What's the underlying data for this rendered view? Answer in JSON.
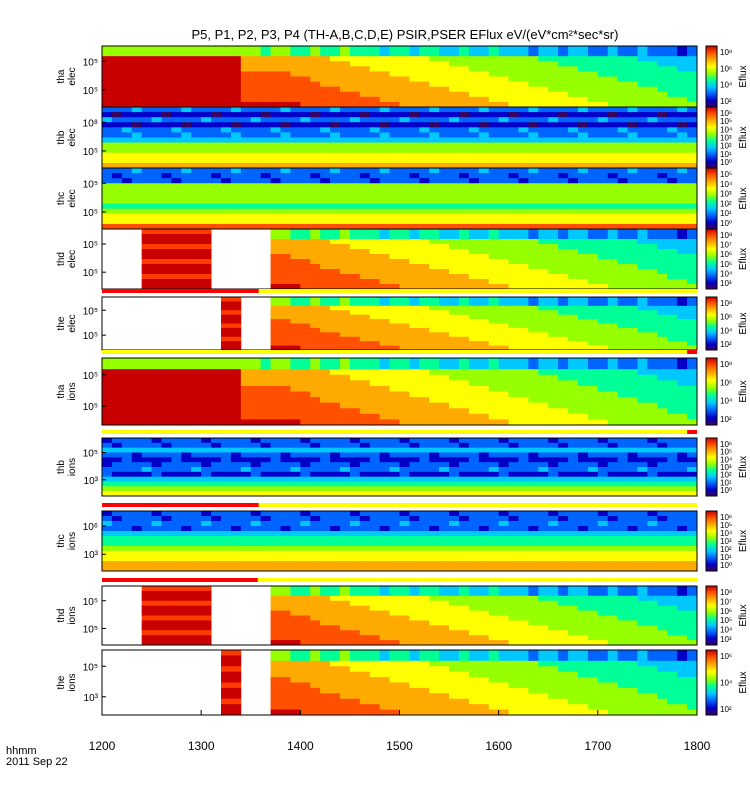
{
  "title": "P5, P1, P2, P3, P4 (TH-A,B,C,D,E) PSIR,PSER EFlux eV/(eV*cm²*sec*sr)",
  "footer": {
    "time_label": "hhmm",
    "date_label": "2011 Sep 22"
  },
  "colorbar_label": "Eflux",
  "colors": {
    "background": "#ffffff",
    "status_bar": "#ff0000",
    "status_bar_ok": "#ffff00",
    "fill": "#ffffff"
  },
  "chart_data": {
    "type": "heatmap",
    "x_ticks": [
      "1200",
      "1300",
      "1400",
      "1500",
      "1600",
      "1700",
      "1800"
    ],
    "xlim": [
      1200,
      1800
    ],
    "x_units": "hhmm",
    "colormap": [
      "#3a0060",
      "#0000c8",
      "#0064ff",
      "#00c8ff",
      "#00ff96",
      "#96ff00",
      "#ffff00",
      "#ffaa00",
      "#ff5000",
      "#c80000"
    ],
    "panels": [
      {
        "probe": "tha",
        "species": "elec",
        "y_ticks": [
          "10⁵",
          "10⁵"
        ],
        "cbar_ticks": [
          "10⁸",
          "10⁶",
          "10⁴",
          "10²"
        ],
        "style": "plasma",
        "fill_until": 1340,
        "fill_color": "#c80000"
      },
      {
        "probe": "thb",
        "species": "elec",
        "y_ticks": [
          "10⁸",
          "10⁵"
        ],
        "cbar_ticks": [
          "10⁶",
          "10⁵",
          "10⁴",
          "10³",
          "10²",
          "10¹",
          "10⁰"
        ],
        "style": "banded_e",
        "status": false
      },
      {
        "probe": "thc",
        "species": "elec",
        "y_ticks": [
          "10⁵",
          "10⁵"
        ],
        "cbar_ticks": [
          "10⁵",
          "10⁴",
          "10³",
          "10²",
          "10¹",
          "10⁰"
        ],
        "style": "banded_c",
        "status": false
      },
      {
        "probe": "thd",
        "species": "elec",
        "y_ticks": [
          "10⁵",
          "10⁵"
        ],
        "cbar_ticks": [
          "10⁸",
          "10⁷",
          "10⁶",
          "10⁵",
          "10⁴",
          "10³"
        ],
        "style": "gap_plasma",
        "red_from": 1242,
        "red_to": 1312,
        "gap_to": 1372
      },
      {
        "probe": "the",
        "species": "elec",
        "y_ticks": [
          "10⁵",
          "10⁵"
        ],
        "cbar_ticks": [
          "10⁸",
          "10⁶",
          "10⁴",
          "10²"
        ],
        "style": "gap_plasma",
        "red_from": 1320,
        "red_to": 1337,
        "gap_to": 1372,
        "status_red_to": 1358
      },
      {
        "probe": "tha",
        "species": "ions",
        "y_ticks": [
          "10⁵",
          "10⁵"
        ],
        "cbar_ticks": [
          "10⁸",
          "10⁶",
          "10⁴",
          "10²"
        ],
        "style": "plasma",
        "fill_until": 1345,
        "fill_color": "#c80000",
        "status_red_from": 1790
      },
      {
        "probe": "thb",
        "species": "ions",
        "y_ticks": [
          "10⁵",
          "10³"
        ],
        "cbar_ticks": [
          "10⁶",
          "10⁵",
          "10⁴",
          "10³",
          "10²",
          "10¹",
          "10⁰"
        ],
        "style": "banded_i",
        "status_red_from": 1790
      },
      {
        "probe": "thc",
        "species": "ions",
        "y_ticks": [
          "10⁶",
          "10³"
        ],
        "cbar_ticks": [
          "10⁶",
          "10⁵",
          "10⁴",
          "10³",
          "10²",
          "10¹",
          "10⁰"
        ],
        "style": "banded_ic",
        "status_red_to": 1358
      },
      {
        "probe": "thd",
        "species": "ions",
        "y_ticks": [
          "10⁵",
          "10⁵"
        ],
        "cbar_ticks": [
          "10⁸",
          "10⁷",
          "10⁶",
          "10⁵",
          "10⁴",
          "10³"
        ],
        "style": "gap_plasma",
        "red_from": 1242,
        "red_to": 1312,
        "gap_to": 1368,
        "status_red_to": 1357
      },
      {
        "probe": "the",
        "species": "ions",
        "y_ticks": [
          "10⁵",
          "10³"
        ],
        "cbar_ticks": [
          "10⁶",
          "10⁴",
          "10²"
        ],
        "style": "gap_plasma",
        "red_from": 1320,
        "red_to": 1336,
        "gap_to": 1372
      }
    ]
  }
}
